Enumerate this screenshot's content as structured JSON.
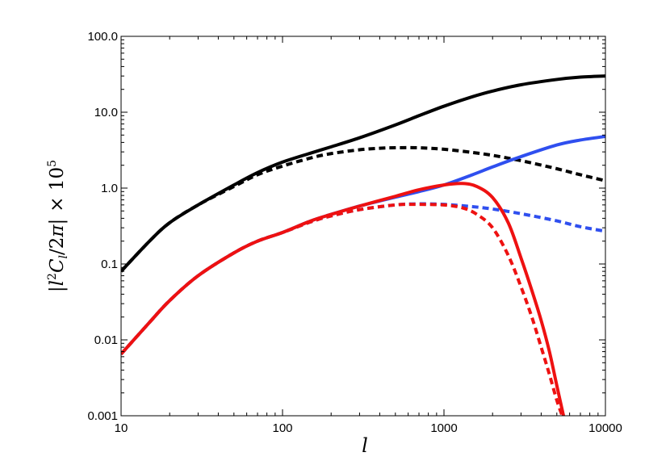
{
  "chart_data": {
    "type": "line",
    "xscale": "log",
    "yscale": "log",
    "xlim": [
      10,
      10000
    ],
    "ylim": [
      0.001,
      100
    ],
    "grid": false,
    "legend": "none",
    "title": "",
    "xlabel": "l",
    "ylabel": {
      "open": "|",
      "l": "l",
      "l_exp": "2",
      "C": "C",
      "C_sub": "l",
      "frac": "/2",
      "pi": "π",
      "close": "|",
      "times": "× 10",
      "exp": "5"
    },
    "xtick_labels": [
      "10",
      "100",
      "1000",
      "10000"
    ],
    "ytick_labels": [
      "0.001",
      "0.01",
      "0.1",
      "1.0",
      "10.0",
      "100.0"
    ],
    "series": [
      {
        "color": "#000000",
        "dash": "solid",
        "x": [
          10,
          15,
          20,
          30,
          50,
          70,
          100,
          150,
          200,
          300,
          500,
          700,
          1000,
          1500,
          2000,
          3000,
          5000,
          7000,
          10000
        ],
        "y": [
          0.08,
          0.2,
          0.35,
          0.6,
          1.1,
          1.6,
          2.2,
          2.9,
          3.5,
          4.6,
          6.8,
          9.0,
          12.0,
          16.0,
          19.0,
          23.0,
          27.0,
          29.0,
          30.0
        ]
      },
      {
        "color": "#000000",
        "dash": "dashed",
        "x": [
          10,
          15,
          20,
          30,
          50,
          70,
          100,
          150,
          200,
          300,
          400,
          500,
          700,
          1000,
          1500,
          2000,
          3000,
          5000,
          7000,
          10000
        ],
        "y": [
          0.08,
          0.2,
          0.35,
          0.6,
          1.05,
          1.5,
          1.95,
          2.5,
          2.85,
          3.2,
          3.35,
          3.4,
          3.4,
          3.25,
          2.95,
          2.7,
          2.3,
          1.8,
          1.5,
          1.25
        ]
      },
      {
        "color": "#2f4fef",
        "dash": "solid",
        "x": [
          10,
          15,
          20,
          30,
          50,
          70,
          100,
          150,
          200,
          300,
          500,
          700,
          1000,
          1500,
          2000,
          3000,
          5000,
          7000,
          10000
        ],
        "y": [
          0.0065,
          0.017,
          0.033,
          0.07,
          0.14,
          0.2,
          0.26,
          0.37,
          0.45,
          0.58,
          0.76,
          0.9,
          1.1,
          1.5,
          1.9,
          2.6,
          3.7,
          4.3,
          4.8
        ]
      },
      {
        "color": "#2f4fef",
        "dash": "dashed",
        "x": [
          10,
          15,
          20,
          30,
          50,
          70,
          100,
          150,
          200,
          300,
          500,
          700,
          1000,
          1500,
          2000,
          3000,
          5000,
          7000,
          10000
        ],
        "y": [
          0.0065,
          0.017,
          0.033,
          0.07,
          0.14,
          0.2,
          0.26,
          0.36,
          0.43,
          0.52,
          0.6,
          0.62,
          0.61,
          0.57,
          0.53,
          0.46,
          0.37,
          0.31,
          0.27
        ]
      },
      {
        "color": "#ee1111",
        "dash": "solid",
        "x": [
          10,
          15,
          20,
          30,
          50,
          70,
          100,
          150,
          200,
          300,
          500,
          700,
          1000,
          1300,
          1600,
          2000,
          2500,
          3000,
          3500,
          4000,
          4500,
          5000,
          5500
        ],
        "y": [
          0.0065,
          0.017,
          0.033,
          0.07,
          0.14,
          0.2,
          0.26,
          0.37,
          0.45,
          0.58,
          0.78,
          0.95,
          1.1,
          1.15,
          1.05,
          0.75,
          0.35,
          0.12,
          0.045,
          0.018,
          0.007,
          0.0025,
          0.001
        ]
      },
      {
        "color": "#ee1111",
        "dash": "dashed",
        "x": [
          10,
          15,
          20,
          30,
          50,
          70,
          100,
          150,
          200,
          300,
          500,
          700,
          1000,
          1300,
          1600,
          2000,
          2500,
          3000,
          3500,
          4000,
          4500,
          5000,
          5400
        ],
        "y": [
          0.0065,
          0.017,
          0.033,
          0.07,
          0.14,
          0.2,
          0.26,
          0.36,
          0.43,
          0.52,
          0.6,
          0.61,
          0.6,
          0.55,
          0.45,
          0.3,
          0.13,
          0.05,
          0.02,
          0.008,
          0.0035,
          0.0016,
          0.001
        ]
      }
    ]
  }
}
